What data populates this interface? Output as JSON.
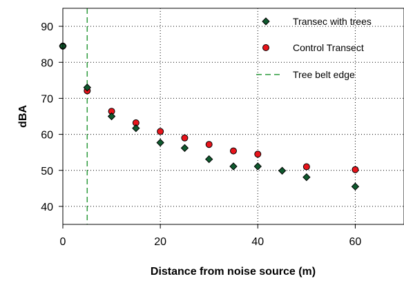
{
  "chart_data": {
    "type": "scatter",
    "xlabel": "Distance from noise source (m)",
    "ylabel": "dBA",
    "xlim": [
      0,
      70
    ],
    "ylim": [
      35,
      95
    ],
    "xticks": [
      0,
      20,
      40,
      60
    ],
    "yticks": [
      40,
      50,
      60,
      70,
      80,
      90
    ],
    "grid": "dotted",
    "legend_position": "top-right",
    "series": [
      {
        "name": "Transec with trees",
        "marker": "diamond",
        "color": "#0f5a2e",
        "points": [
          {
            "x": 0,
            "y": 84.5
          },
          {
            "x": 5,
            "y": 73
          },
          {
            "x": 10,
            "y": 65
          },
          {
            "x": 15,
            "y": 61.7
          },
          {
            "x": 20,
            "y": 57.7
          },
          {
            "x": 25,
            "y": 56.2
          },
          {
            "x": 30,
            "y": 53.1
          },
          {
            "x": 35,
            "y": 51.1
          },
          {
            "x": 40,
            "y": 51.1
          },
          {
            "x": 45,
            "y": 49.9
          },
          {
            "x": 50,
            "y": 48.1
          },
          {
            "x": 60,
            "y": 45.5
          }
        ]
      },
      {
        "name": "Control Transect",
        "marker": "circle",
        "color": "#e8141b",
        "points": [
          {
            "x": 0,
            "y": 84.5
          },
          {
            "x": 5,
            "y": 72.1
          },
          {
            "x": 10,
            "y": 66.4
          },
          {
            "x": 15,
            "y": 63.2
          },
          {
            "x": 20,
            "y": 60.8
          },
          {
            "x": 25,
            "y": 59
          },
          {
            "x": 30,
            "y": 57.2
          },
          {
            "x": 35,
            "y": 55.4
          },
          {
            "x": 40,
            "y": 54.5
          },
          {
            "x": 50,
            "y": 51
          },
          {
            "x": 60,
            "y": 50.2
          }
        ]
      }
    ],
    "reference_line": {
      "name": "Tree belt edge",
      "x": 5,
      "color": "#2e9b3e",
      "style": "dashed"
    }
  }
}
